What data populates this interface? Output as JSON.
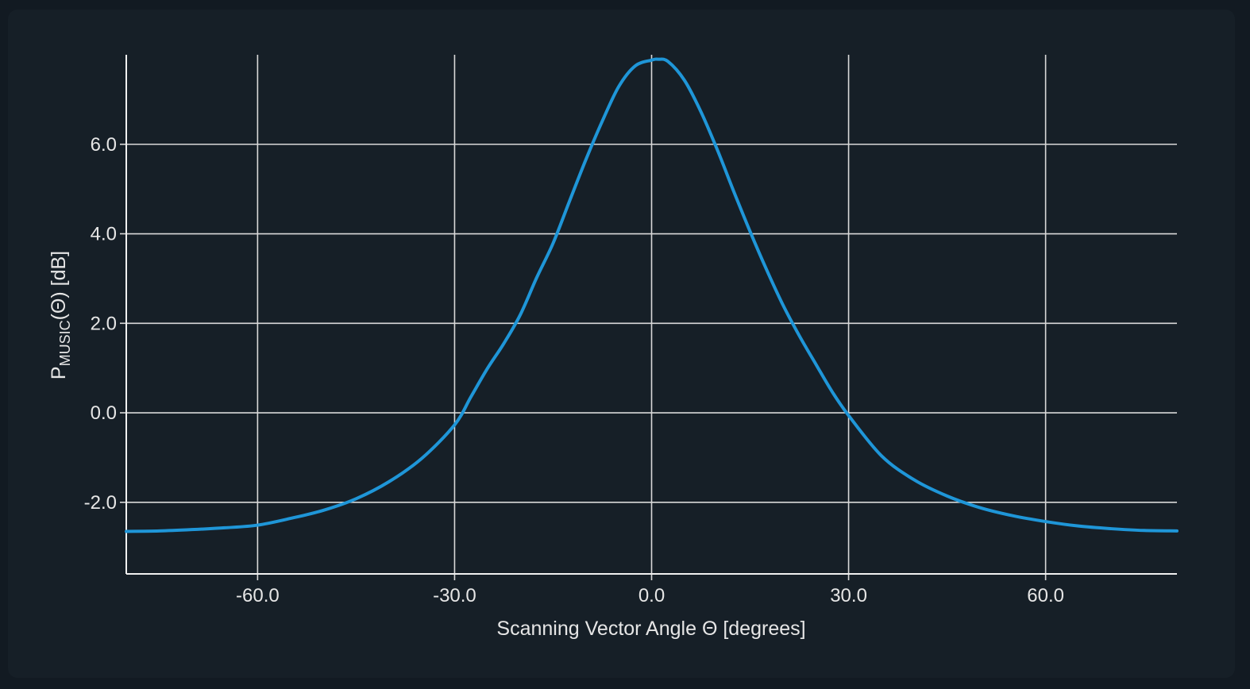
{
  "chart_data": {
    "type": "line",
    "title": "",
    "xlabel": "Scanning Vector Angle Θ [degrees]",
    "ylabel": {
      "prefix": "P",
      "subscript": "MUSIC",
      "suffix": "(Θ) [dB]"
    },
    "xlim": [
      -80,
      80
    ],
    "ylim": [
      -3.6,
      8.0
    ],
    "x_ticks": [
      -60,
      -30,
      0,
      30,
      60
    ],
    "x_tick_labels": [
      "-60.0",
      "-30.0",
      "0.0",
      "30.0",
      "60.0"
    ],
    "y_ticks": [
      -2,
      0,
      2,
      4,
      6
    ],
    "y_tick_labels": [
      "-2.0",
      "0.0",
      "2.0",
      "4.0",
      "6.0"
    ],
    "grid": true,
    "colors": {
      "line": "#1f96d8",
      "grid": "#d9d9d9",
      "background": "#161f27"
    },
    "series": [
      {
        "x": [
          -80,
          -75,
          -70,
          -65,
          -60,
          -55,
          -50,
          -45,
          -40,
          -35,
          -30,
          -27.5,
          -25,
          -22.5,
          -20,
          -17.5,
          -15,
          -12.5,
          -10,
          -7.5,
          -5,
          -2.5,
          0,
          1,
          2.5,
          5,
          7.5,
          10,
          12.5,
          15,
          17.5,
          20,
          22.5,
          25,
          27.5,
          30,
          35,
          40,
          45,
          50,
          55,
          60,
          65,
          70,
          75,
          80
        ],
        "y": [
          -2.65,
          -2.64,
          -2.61,
          -2.57,
          -2.51,
          -2.36,
          -2.18,
          -1.92,
          -1.54,
          -1.02,
          -0.27,
          0.36,
          0.99,
          1.55,
          2.19,
          3.02,
          3.79,
          4.73,
          5.66,
          6.52,
          7.29,
          7.75,
          7.88,
          7.9,
          7.85,
          7.43,
          6.73,
          5.88,
          4.95,
          4.05,
          3.2,
          2.41,
          1.72,
          1.09,
          0.47,
          -0.06,
          -0.96,
          -1.5,
          -1.86,
          -2.12,
          -2.3,
          -2.43,
          -2.53,
          -2.59,
          -2.63,
          -2.64
        ]
      }
    ]
  }
}
